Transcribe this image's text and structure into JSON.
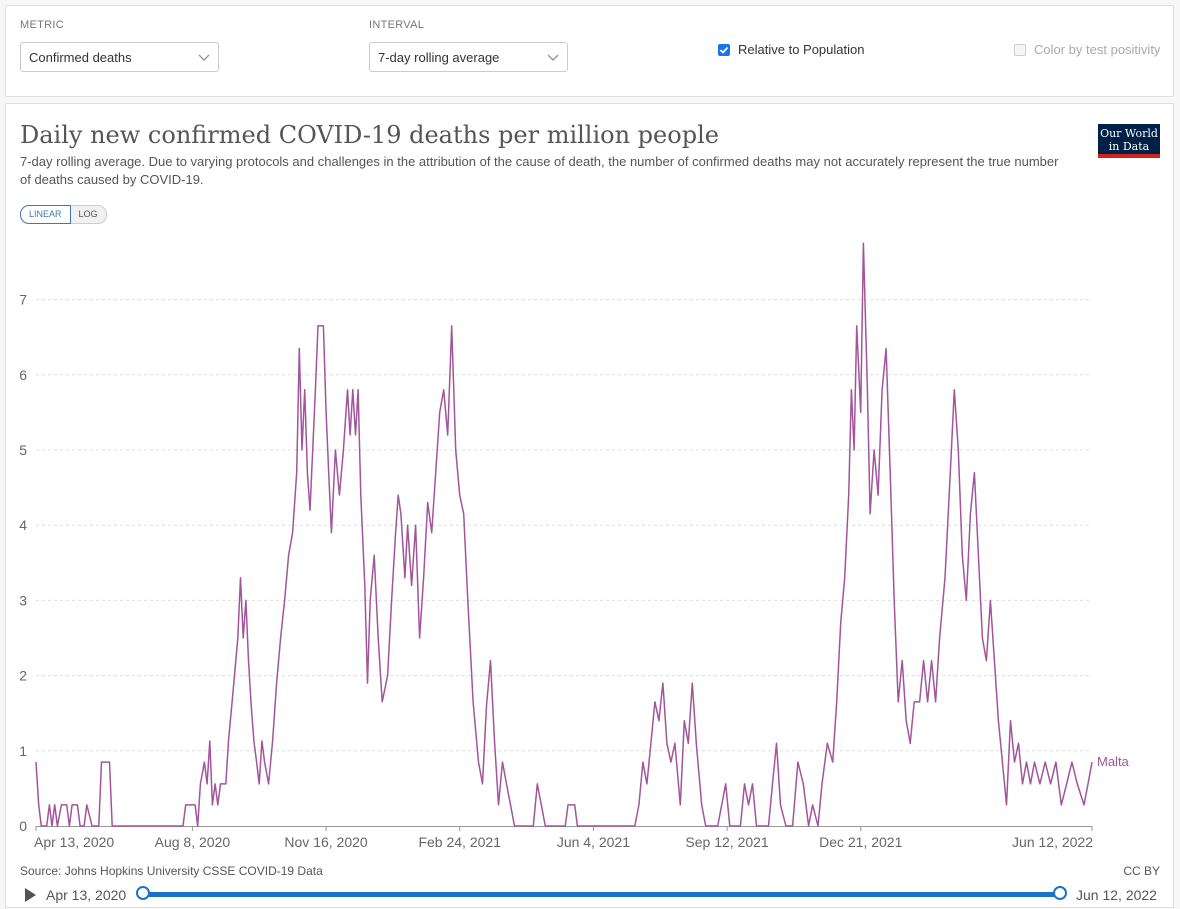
{
  "controls": {
    "metric_label": "METRIC",
    "metric_value": "Confirmed deaths",
    "interval_label": "INTERVAL",
    "interval_value": "7-day rolling average",
    "relative_label": "Relative to Population",
    "relative_checked": true,
    "positivity_label": "Color by test positivity",
    "positivity_checked": false
  },
  "header": {
    "title": "Daily new confirmed COVID-19 deaths per million people",
    "subtitle": "7-day rolling average. Due to varying protocols and challenges in the attribution of the cause of death, the number of confirmed deaths may not accurately represent the true number of deaths caused by COVID-19.",
    "logo_line1": "Our World",
    "logo_line2": "in Data",
    "scale_linear": "LINEAR",
    "scale_log": "LOG"
  },
  "footer": {
    "source": "Source: Johns Hopkins University CSSE COVID-19 Data",
    "license": "CC BY"
  },
  "timeline": {
    "start_label": "Apr 13, 2020",
    "end_label": "Jun 12, 2022"
  },
  "colors": {
    "series": "#a2559c",
    "grid": "#dddddd",
    "axis_text": "#666666",
    "accent": "#1a73c9"
  },
  "chart_data": {
    "type": "line",
    "title": "Daily new confirmed COVID-19 deaths per million people",
    "xlabel": "",
    "ylabel": "",
    "x_ticks": [
      "Apr 13, 2020",
      "Aug 8, 2020",
      "Nov 16, 2020",
      "Feb 24, 2021",
      "Jun 4, 2021",
      "Sep 12, 2021",
      "Dec 21, 2021",
      "Jun 12, 2022"
    ],
    "y_ticks": [
      0,
      1,
      2,
      3,
      4,
      5,
      6,
      7
    ],
    "ylim": [
      0,
      7.75
    ],
    "xlim": [
      "2020-04-13",
      "2022-06-12"
    ],
    "grid": true,
    "series": [
      {
        "name": "Malta",
        "points": [
          [
            "2020-04-13",
            0.85
          ],
          [
            "2020-04-15",
            0.28
          ],
          [
            "2020-04-17",
            0
          ],
          [
            "2020-04-21",
            0
          ],
          [
            "2020-04-23",
            0.28
          ],
          [
            "2020-04-25",
            0
          ],
          [
            "2020-04-27",
            0.28
          ],
          [
            "2020-04-29",
            0
          ],
          [
            "2020-05-02",
            0.28
          ],
          [
            "2020-05-06",
            0.28
          ],
          [
            "2020-05-08",
            0
          ],
          [
            "2020-05-10",
            0.28
          ],
          [
            "2020-05-14",
            0.28
          ],
          [
            "2020-05-16",
            0
          ],
          [
            "2020-05-19",
            0
          ],
          [
            "2020-05-21",
            0.28
          ],
          [
            "2020-05-25",
            0
          ],
          [
            "2020-05-30",
            0
          ],
          [
            "2020-06-01",
            0.85
          ],
          [
            "2020-06-07",
            0.85
          ],
          [
            "2020-06-09",
            0
          ],
          [
            "2020-08-01",
            0
          ],
          [
            "2020-08-03",
            0.28
          ],
          [
            "2020-08-10",
            0.28
          ],
          [
            "2020-08-12",
            0
          ],
          [
            "2020-08-14",
            0.56
          ],
          [
            "2020-08-17",
            0.85
          ],
          [
            "2020-08-19",
            0.56
          ],
          [
            "2020-08-21",
            1.13
          ],
          [
            "2020-08-23",
            0.28
          ],
          [
            "2020-08-25",
            0.56
          ],
          [
            "2020-08-27",
            0.28
          ],
          [
            "2020-08-29",
            0.56
          ],
          [
            "2020-09-02",
            0.56
          ],
          [
            "2020-09-04",
            1.13
          ],
          [
            "2020-09-08",
            1.9
          ],
          [
            "2020-09-11",
            2.5
          ],
          [
            "2020-09-13",
            3.3
          ],
          [
            "2020-09-15",
            2.5
          ],
          [
            "2020-09-17",
            3.0
          ],
          [
            "2020-09-19",
            2.2
          ],
          [
            "2020-09-21",
            1.6
          ],
          [
            "2020-09-23",
            1.13
          ],
          [
            "2020-09-25",
            0.85
          ],
          [
            "2020-09-27",
            0.56
          ],
          [
            "2020-09-29",
            1.13
          ],
          [
            "2020-10-01",
            0.85
          ],
          [
            "2020-10-04",
            0.56
          ],
          [
            "2020-10-07",
            1.13
          ],
          [
            "2020-10-10",
            1.9
          ],
          [
            "2020-10-13",
            2.5
          ],
          [
            "2020-10-16",
            3.0
          ],
          [
            "2020-10-19",
            3.6
          ],
          [
            "2020-10-22",
            3.9
          ],
          [
            "2020-10-25",
            4.7
          ],
          [
            "2020-10-27",
            6.35
          ],
          [
            "2020-10-29",
            5.0
          ],
          [
            "2020-10-31",
            5.8
          ],
          [
            "2020-11-02",
            4.7
          ],
          [
            "2020-11-04",
            4.2
          ],
          [
            "2020-11-06",
            5.0
          ],
          [
            "2020-11-08",
            5.8
          ],
          [
            "2020-11-10",
            6.65
          ],
          [
            "2020-11-14",
            6.65
          ],
          [
            "2020-11-16",
            5.5
          ],
          [
            "2020-11-18",
            4.7
          ],
          [
            "2020-11-20",
            3.9
          ],
          [
            "2020-11-23",
            5.0
          ],
          [
            "2020-11-26",
            4.4
          ],
          [
            "2020-11-29",
            5.0
          ],
          [
            "2020-12-02",
            5.8
          ],
          [
            "2020-12-04",
            5.2
          ],
          [
            "2020-12-06",
            5.8
          ],
          [
            "2020-12-08",
            5.2
          ],
          [
            "2020-12-10",
            5.8
          ],
          [
            "2020-12-12",
            4.4
          ],
          [
            "2020-12-15",
            3.2
          ],
          [
            "2020-12-17",
            1.9
          ],
          [
            "2020-12-19",
            3.0
          ],
          [
            "2020-12-22",
            3.6
          ],
          [
            "2020-12-25",
            2.5
          ],
          [
            "2020-12-28",
            1.65
          ],
          [
            "2021-01-01",
            2.0
          ],
          [
            "2021-01-04",
            3.0
          ],
          [
            "2021-01-07",
            3.9
          ],
          [
            "2021-01-09",
            4.4
          ],
          [
            "2021-01-11",
            4.15
          ],
          [
            "2021-01-14",
            3.3
          ],
          [
            "2021-01-16",
            4.0
          ],
          [
            "2021-01-19",
            3.2
          ],
          [
            "2021-01-22",
            4.0
          ],
          [
            "2021-01-25",
            2.5
          ],
          [
            "2021-01-28",
            3.3
          ],
          [
            "2021-01-31",
            4.3
          ],
          [
            "2021-02-03",
            3.9
          ],
          [
            "2021-02-06",
            4.7
          ],
          [
            "2021-02-09",
            5.5
          ],
          [
            "2021-02-12",
            5.8
          ],
          [
            "2021-02-15",
            5.2
          ],
          [
            "2021-02-18",
            6.65
          ],
          [
            "2021-02-21",
            5.0
          ],
          [
            "2021-02-24",
            4.4
          ],
          [
            "2021-02-27",
            4.15
          ],
          [
            "2021-03-02",
            3.0
          ],
          [
            "2021-03-06",
            1.65
          ],
          [
            "2021-03-10",
            0.85
          ],
          [
            "2021-03-13",
            0.56
          ],
          [
            "2021-03-16",
            1.6
          ],
          [
            "2021-03-19",
            2.2
          ],
          [
            "2021-03-22",
            1.13
          ],
          [
            "2021-03-25",
            0.28
          ],
          [
            "2021-03-28",
            0.85
          ],
          [
            "2021-03-31",
            0.56
          ],
          [
            "2021-04-03",
            0.28
          ],
          [
            "2021-04-06",
            0
          ],
          [
            "2021-04-20",
            0
          ],
          [
            "2021-04-23",
            0.56
          ],
          [
            "2021-04-26",
            0.28
          ],
          [
            "2021-04-29",
            0
          ],
          [
            "2021-05-14",
            0
          ],
          [
            "2021-05-16",
            0.28
          ],
          [
            "2021-05-21",
            0.28
          ],
          [
            "2021-05-23",
            0
          ],
          [
            "2021-07-05",
            0
          ],
          [
            "2021-07-08",
            0.28
          ],
          [
            "2021-07-11",
            0.85
          ],
          [
            "2021-07-14",
            0.56
          ],
          [
            "2021-07-17",
            1.1
          ],
          [
            "2021-07-20",
            1.65
          ],
          [
            "2021-07-23",
            1.4
          ],
          [
            "2021-07-26",
            1.9
          ],
          [
            "2021-07-29",
            1.1
          ],
          [
            "2021-08-01",
            0.85
          ],
          [
            "2021-08-04",
            1.1
          ],
          [
            "2021-08-08",
            0.28
          ],
          [
            "2021-08-11",
            1.4
          ],
          [
            "2021-08-14",
            1.1
          ],
          [
            "2021-08-17",
            1.9
          ],
          [
            "2021-08-20",
            1.1
          ],
          [
            "2021-08-24",
            0.28
          ],
          [
            "2021-08-27",
            0
          ],
          [
            "2021-09-05",
            0
          ],
          [
            "2021-09-08",
            0.28
          ],
          [
            "2021-09-11",
            0.56
          ],
          [
            "2021-09-14",
            0
          ],
          [
            "2021-09-22",
            0
          ],
          [
            "2021-09-25",
            0.56
          ],
          [
            "2021-09-28",
            0.28
          ],
          [
            "2021-10-01",
            0.56
          ],
          [
            "2021-10-04",
            0
          ],
          [
            "2021-10-13",
            0
          ],
          [
            "2021-10-16",
            0.56
          ],
          [
            "2021-10-19",
            1.1
          ],
          [
            "2021-10-22",
            0.28
          ],
          [
            "2021-10-26",
            0
          ],
          [
            "2021-10-31",
            0
          ],
          [
            "2021-11-04",
            0.85
          ],
          [
            "2021-11-08",
            0.56
          ],
          [
            "2021-11-12",
            0
          ],
          [
            "2021-11-15",
            0.28
          ],
          [
            "2021-11-19",
            0
          ],
          [
            "2021-11-22",
            0.56
          ],
          [
            "2021-11-26",
            1.1
          ],
          [
            "2021-11-30",
            0.85
          ],
          [
            "2021-12-03",
            1.65
          ],
          [
            "2021-12-06",
            2.7
          ],
          [
            "2021-12-09",
            3.3
          ],
          [
            "2021-12-12",
            4.4
          ],
          [
            "2021-12-14",
            5.8
          ],
          [
            "2021-12-16",
            5.0
          ],
          [
            "2021-12-18",
            6.65
          ],
          [
            "2021-12-21",
            5.5
          ],
          [
            "2021-12-23",
            7.75
          ],
          [
            "2021-12-26",
            5.8
          ],
          [
            "2021-12-28",
            4.15
          ],
          [
            "2021-12-31",
            5.0
          ],
          [
            "2022-01-03",
            4.4
          ],
          [
            "2022-01-06",
            5.8
          ],
          [
            "2022-01-09",
            6.35
          ],
          [
            "2022-01-12",
            4.7
          ],
          [
            "2022-01-15",
            3.0
          ],
          [
            "2022-01-18",
            1.65
          ],
          [
            "2022-01-21",
            2.2
          ],
          [
            "2022-01-24",
            1.4
          ],
          [
            "2022-01-27",
            1.1
          ],
          [
            "2022-01-30",
            1.65
          ],
          [
            "2022-02-03",
            1.65
          ],
          [
            "2022-02-06",
            2.2
          ],
          [
            "2022-02-09",
            1.65
          ],
          [
            "2022-02-12",
            2.2
          ],
          [
            "2022-02-15",
            1.65
          ],
          [
            "2022-02-18",
            2.5
          ],
          [
            "2022-02-22",
            3.3
          ],
          [
            "2022-02-26",
            4.7
          ],
          [
            "2022-03-01",
            5.8
          ],
          [
            "2022-03-04",
            5.0
          ],
          [
            "2022-03-07",
            3.6
          ],
          [
            "2022-03-10",
            3.0
          ],
          [
            "2022-03-13",
            4.15
          ],
          [
            "2022-03-16",
            4.7
          ],
          [
            "2022-03-19",
            3.6
          ],
          [
            "2022-03-22",
            2.5
          ],
          [
            "2022-03-25",
            2.2
          ],
          [
            "2022-03-28",
            3.0
          ],
          [
            "2022-03-31",
            2.2
          ],
          [
            "2022-04-03",
            1.4
          ],
          [
            "2022-04-06",
            0.85
          ],
          [
            "2022-04-09",
            0.28
          ],
          [
            "2022-04-12",
            1.4
          ],
          [
            "2022-04-15",
            0.85
          ],
          [
            "2022-04-18",
            1.1
          ],
          [
            "2022-04-21",
            0.56
          ],
          [
            "2022-04-24",
            0.85
          ],
          [
            "2022-04-27",
            0.56
          ],
          [
            "2022-04-30",
            0.85
          ],
          [
            "2022-05-04",
            0.56
          ],
          [
            "2022-05-08",
            0.85
          ],
          [
            "2022-05-12",
            0.56
          ],
          [
            "2022-05-16",
            0.85
          ],
          [
            "2022-05-20",
            0.28
          ],
          [
            "2022-05-24",
            0.56
          ],
          [
            "2022-05-28",
            0.85
          ],
          [
            "2022-06-01",
            0.56
          ],
          [
            "2022-06-06",
            0.28
          ],
          [
            "2022-06-09",
            0.56
          ],
          [
            "2022-06-12",
            0.85
          ]
        ]
      }
    ]
  }
}
